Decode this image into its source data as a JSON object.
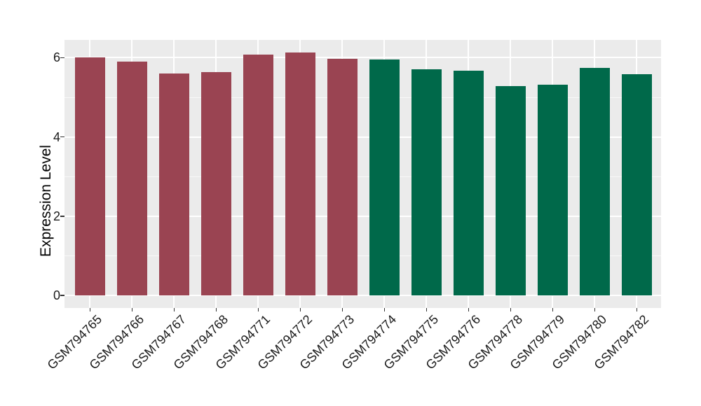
{
  "chart_data": {
    "type": "bar",
    "title": "",
    "xlabel": "",
    "ylabel": "Expression Level",
    "categories": [
      "GSM794765",
      "GSM794766",
      "GSM794767",
      "GSM794768",
      "GSM794771",
      "GSM794772",
      "GSM794773",
      "GSM794774",
      "GSM794775",
      "GSM794776",
      "GSM794778",
      "GSM794779",
      "GSM794780",
      "GSM794782"
    ],
    "values": [
      6.01,
      5.9,
      5.6,
      5.63,
      6.08,
      6.14,
      5.98,
      5.95,
      5.7,
      5.67,
      5.28,
      5.32,
      5.75,
      5.59
    ],
    "group_of_bar": [
      0,
      0,
      0,
      0,
      0,
      0,
      0,
      1,
      1,
      1,
      1,
      1,
      1,
      1
    ],
    "group_colors": [
      "#9A4452",
      "#00694A"
    ],
    "yticks": [
      0,
      2,
      4,
      6
    ],
    "minor_yticks": [
      1,
      3,
      5
    ],
    "ylim": [
      -0.32,
      6.45
    ],
    "grid": true,
    "legend_position": "none",
    "x_label_rotation_deg": 45,
    "panel_bg": "#EBEBEB",
    "figure_bg": "#FFFFFF",
    "gridline_color": "#FFFFFF",
    "tick_mark_color": "#333333",
    "text_color": "#1A1A1A"
  }
}
